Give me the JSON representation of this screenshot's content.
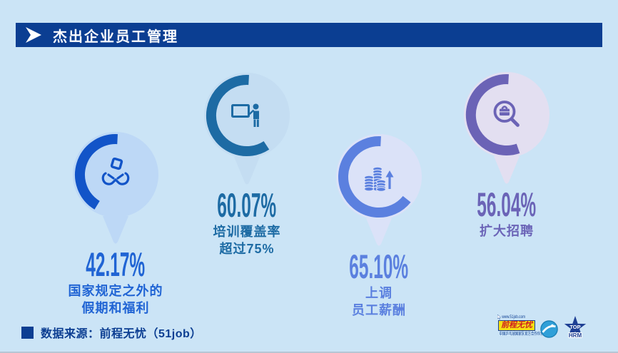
{
  "page": {
    "background_color": "#cbe4f6",
    "banner_color": "#0b3e92"
  },
  "header": {
    "title": "杰出企业员工管理"
  },
  "chart_data": {
    "type": "donut-stats",
    "title": "杰出企业员工管理",
    "items": [
      {
        "value": 42.17,
        "value_label": "42.17%",
        "desc_lines": [
          "国家规定之外的",
          "假期和福利"
        ],
        "icon": "gift-in-hands-icon",
        "arc_color": "#1254c8",
        "bubble_color": "#bdd8f6",
        "text_color": "#2064d4"
      },
      {
        "value": 60.07,
        "value_label": "60.07%",
        "desc_lines": [
          "培训覆盖率",
          "超过75%"
        ],
        "icon": "training-presenter-icon",
        "arc_color": "#1d6ba4",
        "bubble_color": "#c4ddf2",
        "text_color": "#1d6ba4"
      },
      {
        "value": 65.1,
        "value_label": "65.10%",
        "desc_lines": [
          "上调",
          "员工薪酬"
        ],
        "icon": "coins-raise-icon",
        "arc_color": "#5b80df",
        "bubble_color": "#dbe2f8",
        "text_color": "#5b80df"
      },
      {
        "value": 56.04,
        "value_label": "56.04%",
        "desc_lines": [
          "扩大招聘"
        ],
        "icon": "recruit-magnifier-icon",
        "arc_color": "#6b63b6",
        "bubble_color": "#e3dff1",
        "text_color": "#6b64b7"
      }
    ]
  },
  "footer": {
    "source_label": "数据来源：前程无忧（51job）",
    "source_color": "#0c3e92",
    "logo_51job": {
      "url": "www.51job.com",
      "brand": "前程无忧",
      "tagline": "中国乒乓球国家队官方合作伙伴"
    },
    "top_hrm": {
      "line1": "TOP",
      "line2": "HRM"
    }
  }
}
